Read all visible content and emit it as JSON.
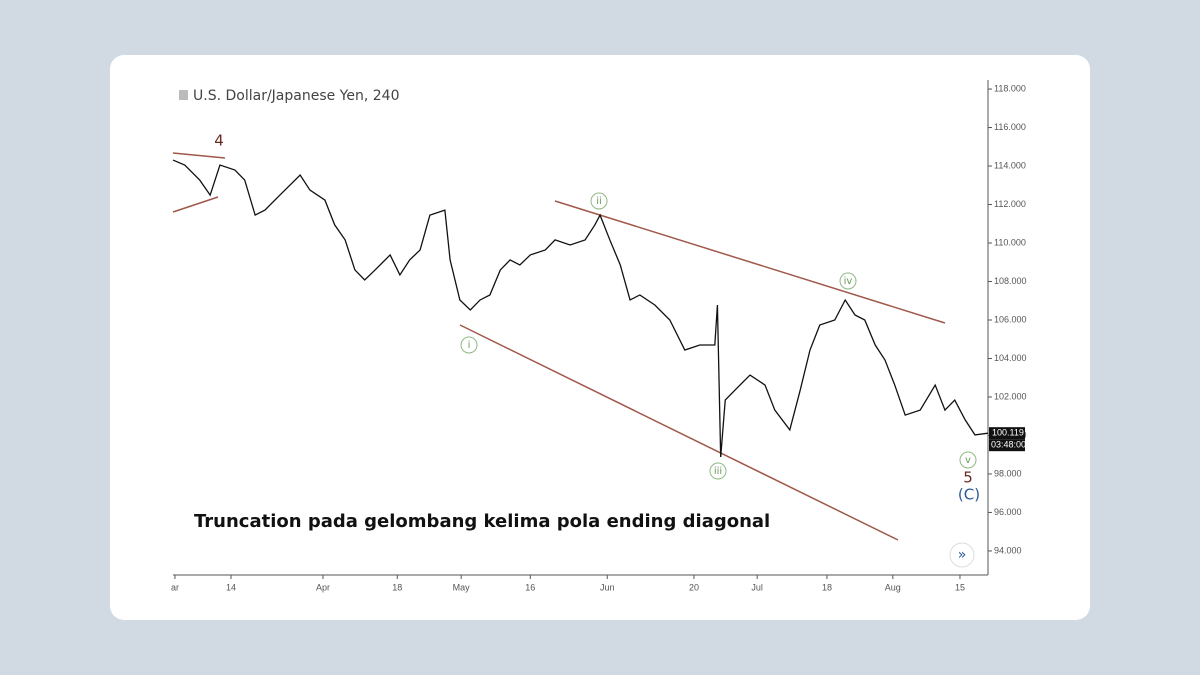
{
  "chart_data": {
    "type": "line",
    "title": "U.S. Dollar/Japanese Yen, 240",
    "caption": "Truncation pada gelombang kelima pola ending diagonal",
    "x": [
      0,
      1.8,
      4.1,
      5.7,
      7.2,
      9.5,
      11.0,
      12.6,
      14.1,
      16.4,
      19.5,
      21.0,
      23.3,
      24.8,
      26.4,
      27.9,
      29.4,
      31.0,
      33.3,
      34.8,
      36.3,
      37.9,
      39.4,
      41.7,
      42.5,
      44.0,
      45.6,
      47.1,
      48.6,
      50.2,
      51.7,
      53.2,
      54.8,
      57.1,
      58.6,
      60.9,
      63.2,
      64.7,
      65.5,
      67.0,
      68.6,
      70.1,
      71.6,
      73.9,
      76.2,
      78.5,
      80.8,
      83.1,
      83.5,
      84.0,
      84.7,
      86.2,
      88.5,
      90.8,
      92.3,
      94.6,
      96.2,
      97.7,
      99.2,
      101.5,
      103.1,
      104.6,
      106.1,
      107.7,
      109.2,
      110.7,
      112.3,
      114.6,
      116.9,
      118.4,
      119.9,
      121.5,
      123.0,
      125
    ],
    "series": [
      {
        "name": "USD/JPY",
        "color": "#111111",
        "values": [
          114.31,
          114.05,
          113.27,
          112.49,
          114.05,
          113.79,
          113.27,
          111.45,
          111.71,
          112.49,
          113.53,
          112.75,
          112.23,
          110.94,
          110.16,
          108.6,
          108.08,
          108.6,
          109.38,
          108.34,
          109.12,
          109.64,
          111.45,
          111.71,
          109.12,
          107.04,
          106.52,
          107.04,
          107.3,
          108.6,
          109.12,
          108.86,
          109.38,
          109.64,
          110.16,
          109.9,
          110.16,
          110.94,
          111.45,
          110.16,
          108.86,
          107.04,
          107.3,
          106.78,
          106.0,
          104.44,
          104.7,
          104.7,
          106.78,
          98.88,
          101.84,
          102.36,
          103.14,
          102.62,
          101.32,
          100.29,
          102.36,
          104.44,
          105.74,
          106.0,
          107.04,
          106.26,
          106.0,
          104.7,
          103.92,
          102.62,
          101.06,
          101.32,
          102.62,
          101.32,
          101.84,
          100.81,
          100.03,
          100.119
        ]
      }
    ],
    "last_price": 100.119,
    "last_price_label": "100.119",
    "countdown": "03:48:00",
    "xlim": [
      0,
      125
    ],
    "xticks": [
      {
        "value": 0.3,
        "label": "ar"
      },
      {
        "value": 8.9,
        "label": "14"
      },
      {
        "value": 23,
        "label": "Apr"
      },
      {
        "value": 34.4,
        "label": "18"
      },
      {
        "value": 44.2,
        "label": "May"
      },
      {
        "value": 54.8,
        "label": "16"
      },
      {
        "value": 66.6,
        "label": "Jun"
      },
      {
        "value": 79.9,
        "label": "20"
      },
      {
        "value": 89.6,
        "label": "Jul"
      },
      {
        "value": 100.3,
        "label": "18"
      },
      {
        "value": 110.4,
        "label": "Aug"
      },
      {
        "value": 120.7,
        "label": "15"
      }
    ],
    "ylim": [
      92.75,
      118.47
    ],
    "yticks": [
      {
        "value": 94,
        "label": "94.000"
      },
      {
        "value": 96,
        "label": "96.000"
      },
      {
        "value": 98,
        "label": "98.000"
      },
      {
        "value": 100,
        "label": "100.000"
      },
      {
        "value": 102,
        "label": "102.000"
      },
      {
        "value": 104,
        "label": "104.000"
      },
      {
        "value": 106,
        "label": "106.000"
      },
      {
        "value": 108,
        "label": "108.000"
      },
      {
        "value": 110,
        "label": "110.000"
      },
      {
        "value": 112,
        "label": "112.000"
      },
      {
        "value": 114,
        "label": "114.000"
      },
      {
        "value": 116,
        "label": "116.000"
      },
      {
        "value": 118,
        "label": "118.000"
      }
    ],
    "wave_labels": {
      "w4": "4",
      "wi": "i",
      "wii": "ii",
      "wiii": "iii",
      "wiv": "iv",
      "wv": "v",
      "w5": "5",
      "wC": "(C)"
    },
    "button": "»"
  }
}
